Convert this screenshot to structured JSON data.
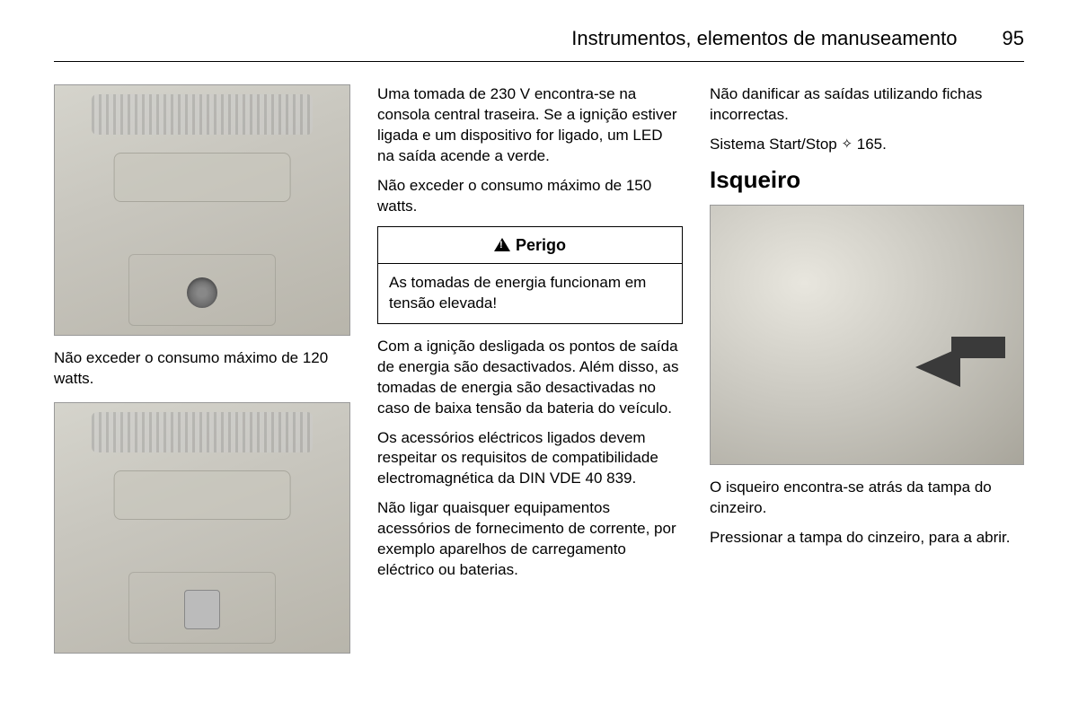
{
  "header": {
    "title": "Instrumentos, elementos de manuseamento",
    "page_number": "95"
  },
  "col1": {
    "text_1": "Não exceder o consumo máximo de 120 watts."
  },
  "col2": {
    "text_1": "Uma tomada de 230 V encontra-se na consola central traseira. Se a ignição estiver ligada e um dispositivo for ligado, um LED na saída acende a verde.",
    "text_2": "Não exceder o consumo máximo de 150 watts.",
    "warning": {
      "title": "Perigo",
      "body": "As tomadas de energia funcionam em tensão elevada!"
    },
    "text_3": "Com a ignição desligada os pontos de saída de energia são desactivados. Além disso, as tomadas de energia são desactivadas no caso de baixa tensão da bateria do veículo.",
    "text_4": "Os acessórios eléctricos ligados devem respeitar os requisitos de compatibilidade electromagnética da DIN VDE 40 839.",
    "text_5": "Não ligar quaisquer equipamentos acessórios de fornecimento de corrente, por exemplo aparelhos de carregamento eléctrico ou baterias."
  },
  "col3": {
    "text_1": "Não danificar as saídas utilizando fichas incorrectas.",
    "text_2_prefix": "Sistema Start/Stop ",
    "text_2_ref": "165.",
    "heading": "Isqueiro",
    "text_3": "O isqueiro encontra-se atrás da tampa do cinzeiro.",
    "text_4": "Pressionar a tampa do cinzeiro, para a abrir."
  }
}
